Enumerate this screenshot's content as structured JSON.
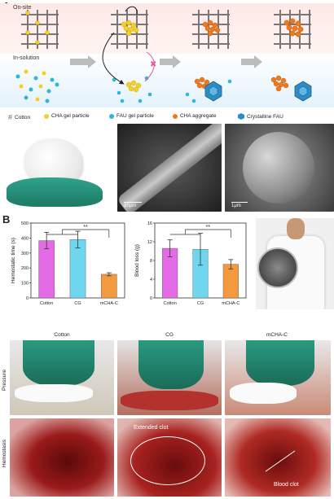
{
  "panelA": {
    "letter": "A",
    "on_site_label": "On-site",
    "in_solution_label": "In-solution",
    "legend": [
      {
        "icon": "cotton-grid-icon",
        "label": "Cotton"
      },
      {
        "icon": "yellow-dot-icon",
        "label": "CHA gel particle",
        "color": "#f2cf2a"
      },
      {
        "icon": "blue-dot-icon",
        "label": "FAU gel particle",
        "color": "#2fb6d9"
      },
      {
        "icon": "orange-cluster-icon",
        "label": "CHA aggregate",
        "color": "#ee7a1e"
      },
      {
        "icon": "hexagon-crystal-icon",
        "label": "Crystalline FAU",
        "color": "#2c8dc4"
      }
    ],
    "sem_scale_1": "10μm",
    "sem_scale_2": "1μm"
  },
  "panelB": {
    "letter": "B",
    "charts_meta": {
      "bar_colors": [
        "#e36be6",
        "#6fd6ef",
        "#f39a3e"
      ]
    }
  },
  "chart_data": [
    {
      "type": "bar",
      "categories": [
        "Cotton",
        "CG",
        "mCHA-C"
      ],
      "values": [
        383,
        390,
        158
      ],
      "errors": [
        55,
        55,
        10
      ],
      "ylabel": "Hemostatic time (s)",
      "ylim": [
        0,
        500
      ],
      "yticks": [
        0,
        100,
        200,
        300,
        400,
        500
      ],
      "significance": "**"
    },
    {
      "type": "bar",
      "categories": [
        "Cotton",
        "CG",
        "mCHA-C"
      ],
      "values": [
        10.6,
        10.4,
        7.2
      ],
      "errors": [
        1.8,
        3.4,
        1.0
      ],
      "ylabel": "Blood loss (g)",
      "ylim": [
        0,
        16
      ],
      "yticks": [
        0,
        4,
        8,
        12,
        16
      ],
      "significance": "**"
    }
  ],
  "photo_grid": {
    "columns": [
      "Cotton",
      "CG",
      "mCHA-C"
    ],
    "rows": [
      "Pressure",
      "Hemostasis"
    ],
    "annotations": {
      "extended_clot": "Extended clot",
      "blood_clot": "Blood clot"
    }
  }
}
